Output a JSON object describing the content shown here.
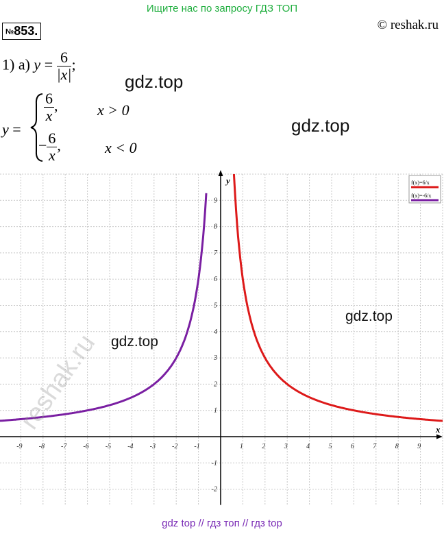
{
  "header": {
    "text": "Ищите нас по запросу ГДЗ ТОП"
  },
  "problem": {
    "number_prefix": "№",
    "number": "853."
  },
  "copyright": "© reshak.ru",
  "watermarks": [
    "gdz.top",
    "gdz.top",
    "gdz.top",
    "gdz.top"
  ],
  "side_watermark": "reshak.ru",
  "footer": "gdz top  //  гдз топ  //  гдз top",
  "math": {
    "part_label": "1) а)",
    "y": "y",
    "eq": "=",
    "numerator": "6",
    "denominator": "|x|",
    "semicolon": ";",
    "case1_num": "6",
    "case1_den": "x",
    "case1_comma": ",",
    "case1_cond": "x > 0",
    "case2_sign": "−",
    "case2_num": "6",
    "case2_den": "x",
    "case2_comma": ",",
    "case2_cond": "x < 0"
  },
  "chart_data": {
    "type": "line",
    "xlabel": "x",
    "ylabel": "y",
    "xlim": [
      -10,
      10
    ],
    "ylim": [
      -2.6,
      10
    ],
    "x_ticks": [
      -9,
      -8,
      -7,
      -6,
      -5,
      -4,
      -3,
      -2,
      -1,
      1,
      2,
      3,
      4,
      5,
      6,
      7,
      8,
      9
    ],
    "y_ticks": [
      -2,
      -1,
      1,
      2,
      3,
      4,
      5,
      6,
      7,
      8,
      9
    ],
    "grid": true,
    "legend_position": "top-right",
    "series": [
      {
        "name": "f(x)=6/x",
        "color": "#dd1a1a",
        "domain": [
          0.6,
          10
        ],
        "x": [
          0.6,
          0.75,
          1,
          1.5,
          2,
          3,
          4,
          5,
          6,
          7,
          8,
          9,
          10
        ],
        "y": [
          10,
          8,
          6,
          4,
          3,
          2,
          1.5,
          1.2,
          1,
          0.857,
          0.75,
          0.667,
          0.6
        ]
      },
      {
        "name": "f(x)=-6/x",
        "color": "#7a1fa2",
        "domain": [
          -10,
          -0.6
        ],
        "x": [
          -10,
          -9,
          -8,
          -7,
          -6,
          -5,
          -4,
          -3,
          -2,
          -1.5,
          -1,
          -0.75,
          -0.6
        ],
        "y": [
          0.6,
          0.667,
          0.75,
          0.857,
          1,
          1.2,
          1.5,
          2,
          3,
          4,
          6,
          8,
          10
        ]
      }
    ]
  }
}
